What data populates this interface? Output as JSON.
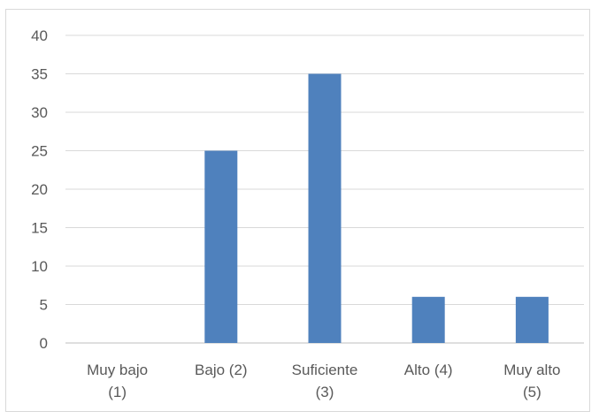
{
  "chart_data": {
    "type": "bar",
    "categories": [
      "Muy bajo (1)",
      "Bajo (2)",
      "Suficiente (3)",
      "Alto (4)",
      "Muy alto (5)"
    ],
    "category_label_lines": [
      [
        "Muy bajo",
        "(1)"
      ],
      [
        "Bajo (2)"
      ],
      [
        "Suficiente",
        "(3)"
      ],
      [
        "Alto (4)"
      ],
      [
        "Muy alto",
        "(5)"
      ]
    ],
    "values": [
      0,
      25,
      35,
      6,
      6
    ],
    "ylim": [
      0,
      40
    ],
    "yticks": [
      0,
      5,
      10,
      15,
      20,
      25,
      30,
      35,
      40
    ],
    "grid": true,
    "legend": "none",
    "colors": {
      "bar": "#4f81bd",
      "grid": "#d9d9d9",
      "axis": "#bfbfbf",
      "text": "#595959"
    }
  }
}
